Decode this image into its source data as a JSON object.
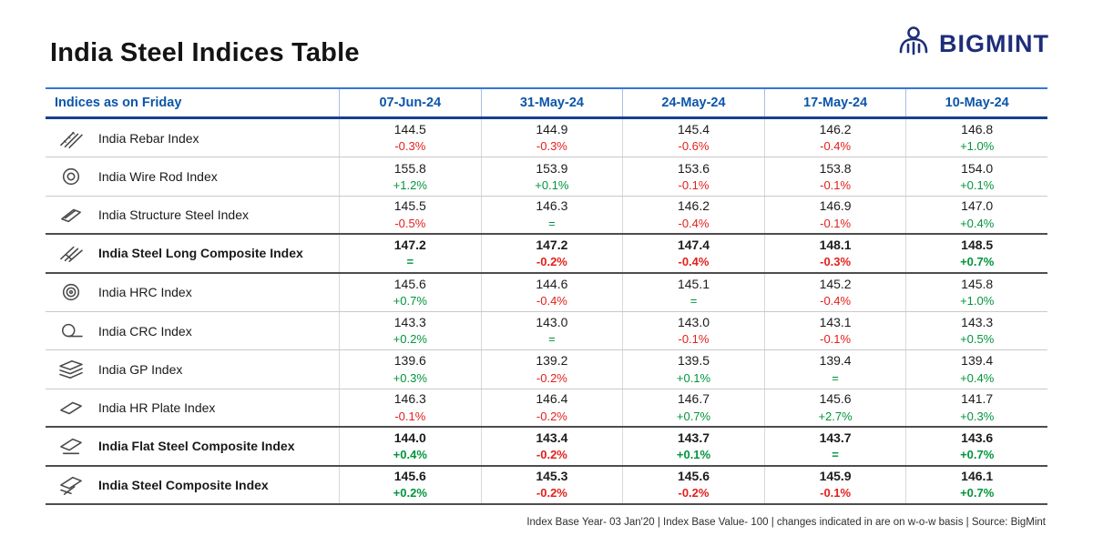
{
  "page": {
    "title": "India Steel Indices Table",
    "brand": {
      "name": "BIGMINT"
    },
    "footer_note": "Index Base Year- 03 Jan'20 | Index Base Value- 100 | changes indicated in are on w-o-w basis | Source: BigMint"
  },
  "colors": {
    "positive": "#00953b",
    "negative": "#e3201b",
    "header_text": "#0b55aa",
    "header_rule": "#16418e",
    "brand_navy": "#1d2e79"
  },
  "chart_data": {
    "type": "table",
    "title": "India Steel Indices Table",
    "header": [
      "Indices as on Friday",
      "07-Jun-24",
      "31-May-24",
      "24-May-24",
      "17-May-24",
      "10-May-24"
    ],
    "rows": [
      {
        "name": "India Rebar Index",
        "icon": "rebar-icon",
        "bold": false,
        "values": [
          "144.5",
          "144.9",
          "145.4",
          "146.2",
          "146.8"
        ],
        "changes": [
          "-0.3%",
          "-0.3%",
          "-0.6%",
          "-0.4%",
          "+1.0%"
        ]
      },
      {
        "name": "India Wire Rod Index",
        "icon": "wire-rod-icon",
        "bold": false,
        "values": [
          "155.8",
          "153.9",
          "153.6",
          "153.8",
          "154.0"
        ],
        "changes": [
          "+1.2%",
          "+0.1%",
          "-0.1%",
          "-0.1%",
          "+0.1%"
        ]
      },
      {
        "name": "India Structure Steel Index",
        "icon": "structure-steel-icon",
        "bold": false,
        "values": [
          "145.5",
          "146.3",
          "146.2",
          "146.9",
          "147.0"
        ],
        "changes": [
          "-0.5%",
          "=",
          "-0.4%",
          "-0.1%",
          "+0.4%"
        ]
      },
      {
        "name": "India Steel Long Composite Index",
        "icon": "long-composite-icon",
        "bold": true,
        "values": [
          "147.2",
          "147.2",
          "147.4",
          "148.1",
          "148.5"
        ],
        "changes": [
          "=",
          "-0.2%",
          "-0.4%",
          "-0.3%",
          "+0.7%"
        ]
      },
      {
        "name": "India HRC Index",
        "icon": "hrc-icon",
        "bold": false,
        "values": [
          "145.6",
          "144.6",
          "145.1",
          "145.2",
          "145.8"
        ],
        "changes": [
          "+0.7%",
          "-0.4%",
          "=",
          "-0.4%",
          "+1.0%"
        ]
      },
      {
        "name": "India CRC Index",
        "icon": "crc-icon",
        "bold": false,
        "values": [
          "143.3",
          "143.0",
          "143.0",
          "143.1",
          "143.3"
        ],
        "changes": [
          "+0.2%",
          "=",
          "-0.1%",
          "-0.1%",
          "+0.5%"
        ]
      },
      {
        "name": "India GP Index",
        "icon": "gp-icon",
        "bold": false,
        "values": [
          "139.6",
          "139.2",
          "139.5",
          "139.4",
          "139.4"
        ],
        "changes": [
          "+0.3%",
          "-0.2%",
          "+0.1%",
          "=",
          "+0.4%"
        ]
      },
      {
        "name": "India HR Plate Index",
        "icon": "hr-plate-icon",
        "bold": false,
        "values": [
          "146.3",
          "146.4",
          "146.7",
          "145.6",
          "141.7"
        ],
        "changes": [
          "-0.1%",
          "-0.2%",
          "+0.7%",
          "+2.7%",
          "+0.3%"
        ]
      },
      {
        "name": "India Flat Steel Composite Index",
        "icon": "flat-composite-icon",
        "bold": true,
        "values": [
          "144.0",
          "143.4",
          "143.7",
          "143.7",
          "143.6"
        ],
        "changes": [
          "+0.4%",
          "-0.2%",
          "+0.1%",
          "=",
          "+0.7%"
        ]
      },
      {
        "name": "India Steel Composite Index",
        "icon": "steel-composite-icon",
        "bold": true,
        "values": [
          "145.6",
          "145.3",
          "145.6",
          "145.9",
          "146.1"
        ],
        "changes": [
          "+0.2%",
          "-0.2%",
          "-0.2%",
          "-0.1%",
          "+0.7%"
        ]
      }
    ]
  }
}
